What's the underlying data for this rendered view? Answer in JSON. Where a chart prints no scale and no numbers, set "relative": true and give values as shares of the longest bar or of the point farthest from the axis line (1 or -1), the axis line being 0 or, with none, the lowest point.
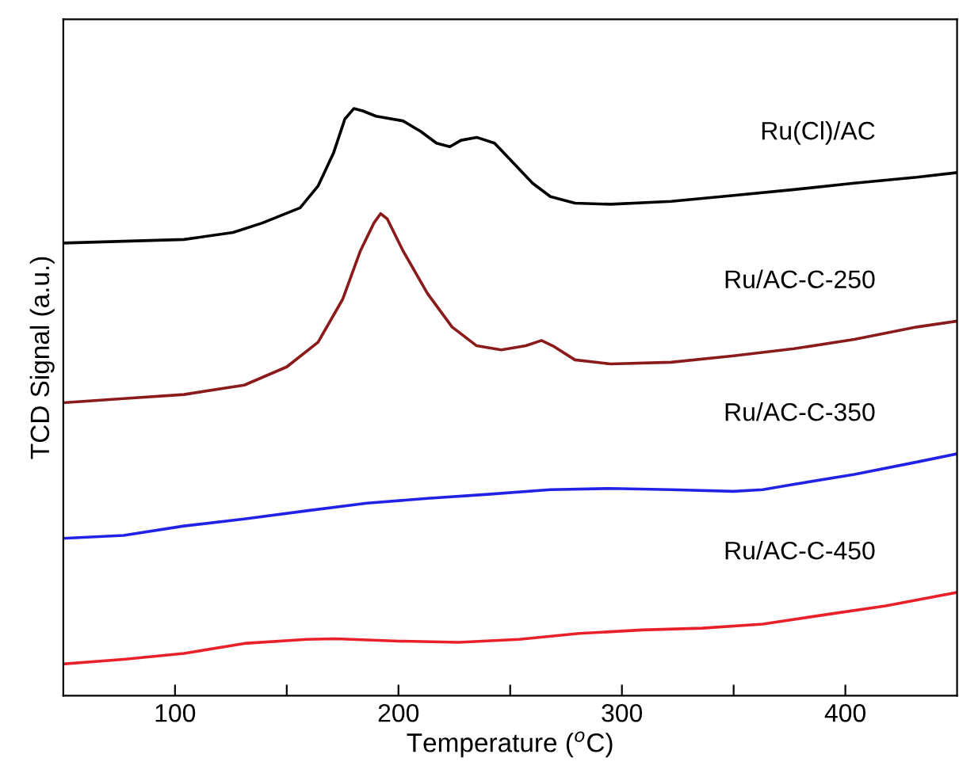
{
  "chart_data": {
    "type": "line",
    "relative": true,
    "xlabel": "Temperature ($^{o}$C)",
    "ylabel": "TCD Signal (a.u.)",
    "xlim": [
      50,
      450
    ],
    "xticks": [
      100,
      {
        "value": 150,
        "label": null
      },
      200,
      {
        "value": 250,
        "label": null
      },
      300,
      {
        "value": 350,
        "label": null
      },
      400
    ],
    "tick_labels": "x",
    "grid": false,
    "legend": false,
    "marker": "none",
    "line_style": "solid",
    "series": [
      {
        "name": "Ru(Cl)/AC",
        "color": "#000000",
        "x": [
          50,
          77,
          104,
          126,
          139,
          156,
          164,
          171,
          176,
          180,
          184,
          190,
          202,
          210,
          217,
          223,
          228,
          235,
          243,
          251,
          260,
          268,
          279,
          295,
          322,
          350,
          377,
          404,
          432,
          450
        ],
        "values": [
          0.771,
          0.774,
          0.777,
          0.789,
          0.805,
          0.831,
          0.868,
          0.925,
          0.982,
          1,
          0.996,
          0.987,
          0.979,
          0.961,
          0.941,
          0.935,
          0.946,
          0.951,
          0.941,
          0.909,
          0.873,
          0.85,
          0.839,
          0.837,
          0.842,
          0.852,
          0.862,
          0.873,
          0.883,
          0.891
        ]
      },
      {
        "name": "Ru/AC-C-250",
        "color": "#8b1a1a",
        "x": [
          50,
          77,
          104,
          131,
          150,
          164,
          175,
          183,
          189,
          192,
          195,
          202,
          213,
          224,
          235,
          246,
          257,
          264,
          269,
          279,
          295,
          322,
          350,
          377,
          404,
          432,
          450
        ],
        "values": [
          0.499,
          0.506,
          0.513,
          0.529,
          0.56,
          0.602,
          0.675,
          0.758,
          0.805,
          0.821,
          0.812,
          0.758,
          0.685,
          0.628,
          0.596,
          0.589,
          0.596,
          0.605,
          0.596,
          0.572,
          0.565,
          0.568,
          0.579,
          0.591,
          0.607,
          0.628,
          0.638
        ]
      },
      {
        "name": "Ru/AC-C-350",
        "color": "#2222e6",
        "x": [
          50,
          77,
          104,
          131,
          159,
          186,
          213,
          240,
          268,
          295,
          322,
          350,
          363,
          377,
          404,
          432,
          450
        ],
        "values": [
          0.268,
          0.273,
          0.289,
          0.301,
          0.315,
          0.328,
          0.336,
          0.343,
          0.351,
          0.353,
          0.351,
          0.348,
          0.351,
          0.36,
          0.377,
          0.398,
          0.412
        ]
      },
      {
        "name": "Ru/AC-C-450",
        "color": "#e8202a",
        "x": [
          50,
          77,
          104,
          131,
          159,
          172,
          200,
          227,
          254,
          281,
          309,
          336,
          363,
          391,
          418,
          450
        ],
        "values": [
          0.054,
          0.062,
          0.072,
          0.089,
          0.096,
          0.097,
          0.093,
          0.091,
          0.096,
          0.106,
          0.112,
          0.115,
          0.122,
          0.138,
          0.153,
          0.176
        ]
      }
    ]
  }
}
